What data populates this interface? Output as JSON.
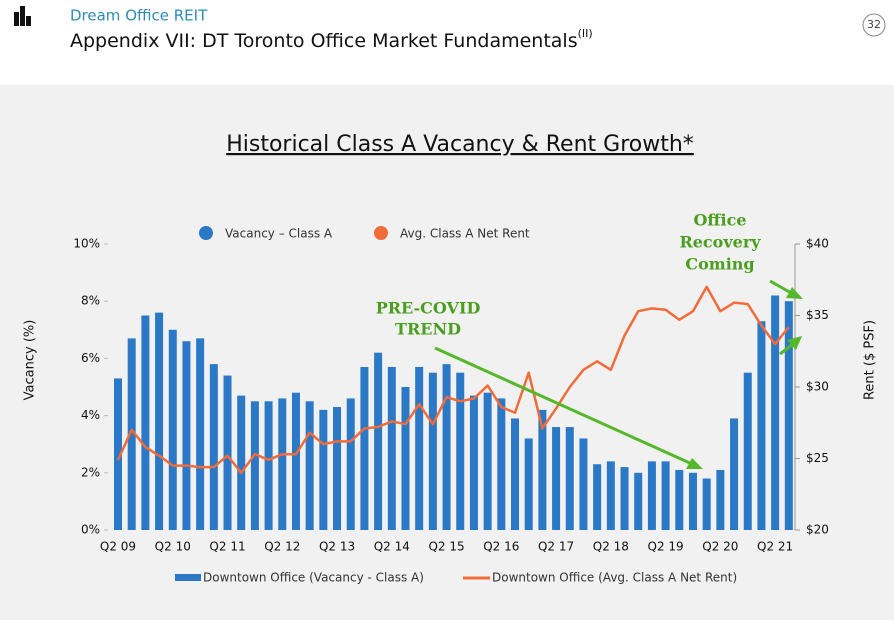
{
  "header": {
    "company": "Dream Office REIT",
    "title": "Appendix VII: DT Toronto Office Market Fundamentals",
    "superscript": "(II)",
    "page_number": "32"
  },
  "chart_data": {
    "type": "bar-line",
    "title": "Historical Class A Vacancy & Rent Growth*",
    "ylabel": "Vacancy (%)",
    "y2label": "Rent ($ PSF)",
    "categories": [
      "Q2 09",
      null,
      null,
      null,
      "Q2 10",
      null,
      null,
      null,
      "Q2 11",
      null,
      null,
      null,
      "Q2 12",
      null,
      null,
      null,
      "Q2 13",
      null,
      null,
      null,
      "Q2 14",
      null,
      null,
      null,
      "Q2 15",
      null,
      null,
      null,
      "Q2 16",
      null,
      null,
      null,
      "Q2 17",
      null,
      null,
      null,
      "Q2 18",
      null,
      null,
      null,
      "Q2 19",
      null,
      null,
      null,
      "Q2 20",
      null,
      null,
      null,
      "Q2 21",
      null
    ],
    "series": [
      {
        "name": "Vacancy – Class A",
        "type": "bar",
        "color": "#2a78c6",
        "values": [
          5.3,
          6.7,
          7.5,
          7.6,
          7.0,
          6.6,
          6.7,
          5.8,
          5.4,
          4.7,
          4.5,
          4.5,
          4.6,
          4.8,
          4.5,
          4.2,
          4.3,
          4.6,
          5.7,
          6.2,
          5.7,
          5.0,
          5.7,
          5.5,
          5.8,
          5.5,
          4.7,
          4.8,
          4.6,
          3.9,
          3.2,
          4.2,
          3.6,
          3.6,
          3.2,
          2.3,
          2.4,
          2.2,
          2.0,
          2.4,
          2.4,
          2.1,
          2.0,
          1.8,
          2.1,
          3.9,
          5.5,
          7.3,
          8.2,
          8.0
        ]
      },
      {
        "name": "Avg. Class A Net Rent",
        "type": "line",
        "axis": "y2",
        "color": "#f26b38",
        "values": [
          24.9,
          27.0,
          25.8,
          25.2,
          24.5,
          24.5,
          24.4,
          24.4,
          25.2,
          24.0,
          25.3,
          24.9,
          25.3,
          25.3,
          26.8,
          26.0,
          26.2,
          26.2,
          27.1,
          27.2,
          27.6,
          27.4,
          28.8,
          27.4,
          29.3,
          29.0,
          29.2,
          30.1,
          28.6,
          28.2,
          31.0,
          27.1,
          28.5,
          30.0,
          31.2,
          31.8,
          31.2,
          33.6,
          35.3,
          35.5,
          35.4,
          34.7,
          35.3,
          37.0,
          35.3,
          35.9,
          35.8,
          34.3,
          33.0,
          34.2
        ]
      }
    ],
    "bottom_legend": [
      "Downtown Office (Vacancy - Class A)",
      "Downtown Office (Avg. Class A Net Rent)"
    ],
    "ylim": [
      0,
      10
    ],
    "yticks": [
      {
        "value": 0,
        "label": "0%"
      },
      {
        "value": 2,
        "label": "2%"
      },
      {
        "value": 4,
        "label": "4%"
      },
      {
        "value": 6,
        "label": "6%"
      },
      {
        "value": 8,
        "label": "8%"
      },
      {
        "value": 10,
        "label": "10%"
      }
    ],
    "y2lim": [
      20,
      40
    ],
    "y2ticks": [
      {
        "value": 20,
        "label": "$20"
      },
      {
        "value": 25,
        "label": "$25"
      },
      {
        "value": 30,
        "label": "$30"
      },
      {
        "value": 35,
        "label": "$35"
      },
      {
        "value": 40,
        "label": "$40"
      }
    ],
    "annotations": [
      [
        "PRE-COVID",
        "TREND"
      ],
      [
        "Office",
        "Recovery",
        "Coming"
      ]
    ]
  }
}
